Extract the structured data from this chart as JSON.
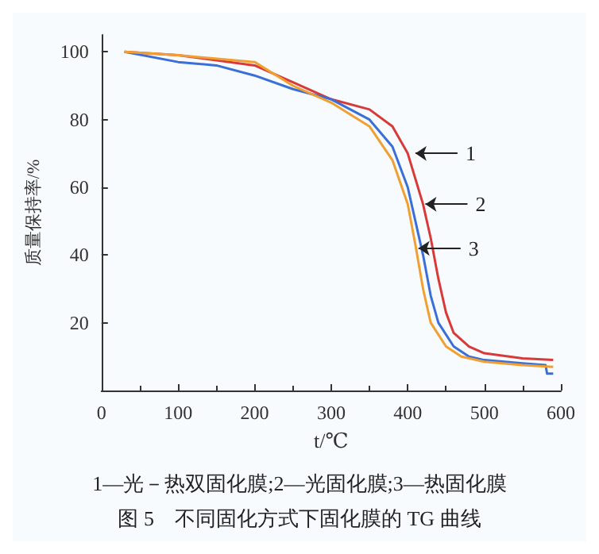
{
  "chart_data": {
    "type": "line",
    "title": "图 5　不同固化方式下固化膜的 TG 曲线",
    "xlabel": "t/℃",
    "ylabel": "质量保持率/%",
    "annotations": [
      "1—光－热双固化膜;2—光固化膜;3—热固化膜",
      {
        "text": "1",
        "x": 410,
        "y": 70
      },
      {
        "text": "2",
        "x": 423,
        "y": 55
      },
      {
        "text": "3",
        "x": 414,
        "y": 42
      }
    ],
    "xlim": [
      0,
      600
    ],
    "xticks": [
      0,
      100,
      200,
      300,
      400,
      500,
      600
    ],
    "ylim": [
      0,
      105
    ],
    "yticks": [
      20,
      40,
      60,
      80,
      100
    ],
    "grid": false,
    "marker": "none",
    "line_style": "solid",
    "series": [
      {
        "color": "#d83a3a",
        "x": [
          30,
          100,
          200,
          250,
          300,
          350,
          380,
          400,
          420,
          430,
          440,
          450,
          460,
          480,
          500,
          550,
          590
        ],
        "values": [
          100,
          99,
          96,
          91,
          86,
          83,
          78,
          70,
          55,
          45,
          33,
          23,
          17,
          13,
          11,
          9.5,
          9
        ]
      },
      {
        "color": "#3a6fd8",
        "x": [
          30,
          100,
          150,
          200,
          250,
          300,
          350,
          380,
          400,
          410,
          420,
          430,
          440,
          460,
          480,
          500,
          550,
          580,
          582,
          590
        ],
        "values": [
          100,
          97,
          96,
          93,
          89,
          86,
          80,
          72,
          60,
          50,
          40,
          28,
          20,
          13,
          10,
          9,
          8,
          7.5,
          5,
          5
        ]
      },
      {
        "color": "#f0a030",
        "x": [
          30,
          100,
          200,
          250,
          300,
          350,
          380,
          400,
          410,
          420,
          430,
          450,
          470,
          500,
          550,
          590
        ],
        "values": [
          100,
          99,
          97,
          90,
          85,
          78,
          68,
          55,
          43,
          30,
          20,
          13,
          10,
          8.5,
          7.5,
          7
        ]
      }
    ]
  }
}
